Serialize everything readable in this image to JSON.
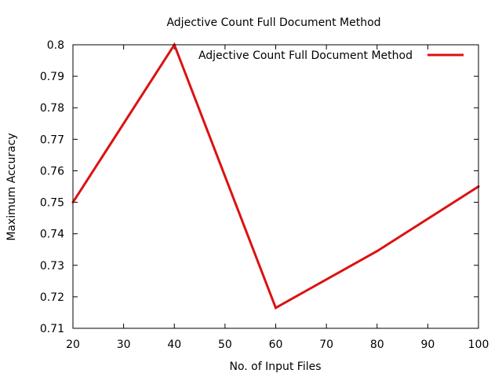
{
  "chart_data": {
    "type": "line",
    "title": "Adjective Count Full Document Method",
    "xlabel": "No. of Input Files",
    "ylabel": "Maximum Accuracy",
    "xlim": [
      20,
      100
    ],
    "ylim": [
      0.71,
      0.8
    ],
    "xticks": [
      "20",
      "30",
      "40",
      "50",
      "60",
      "70",
      "80",
      "90",
      "100"
    ],
    "yticks": [
      "0.71",
      "0.72",
      "0.73",
      "0.74",
      "0.75",
      "0.76",
      "0.77",
      "0.78",
      "0.79",
      "0.8"
    ],
    "grid": false,
    "legend_position": "top-right",
    "series": [
      {
        "name": "Adjective Count Full Document Method",
        "color": "#dd1111",
        "x": [
          20,
          40,
          60,
          80,
          100
        ],
        "y": [
          0.75,
          0.8,
          0.7165,
          0.7345,
          0.755
        ]
      }
    ]
  }
}
